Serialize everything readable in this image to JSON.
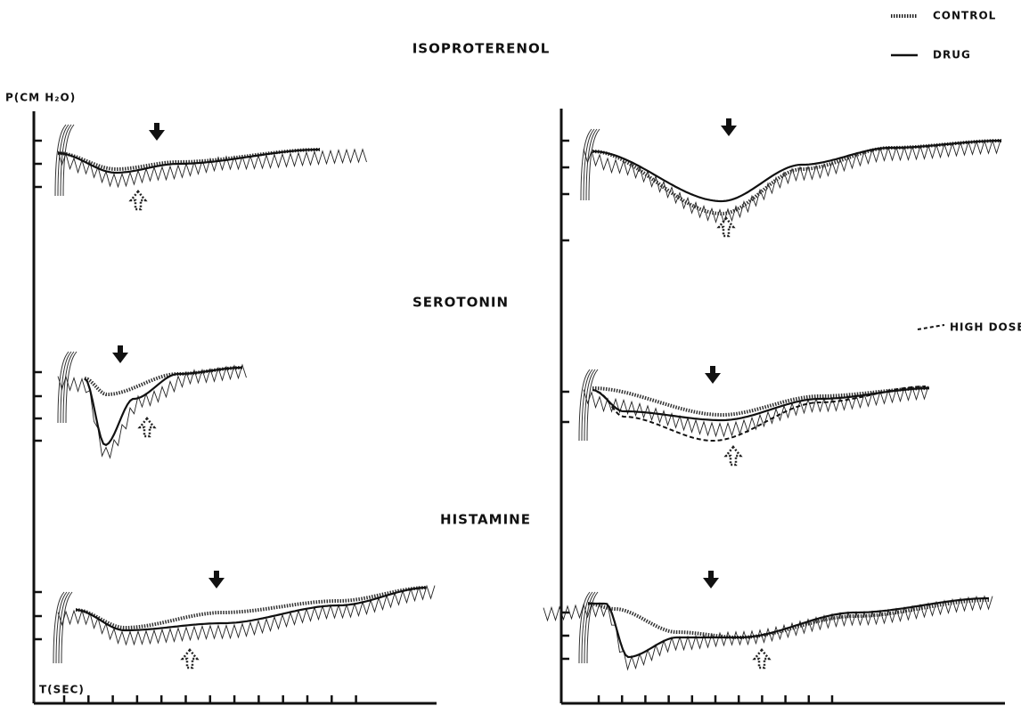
{
  "labels": {
    "title_1": "ISOPROTERENOL",
    "title_2": "SEROTONIN",
    "title_3": "HISTAMINE"
  },
  "legend": {
    "control": "CONTROL",
    "drug": "DRUG",
    "high_dose": "HIGH DOSE"
  },
  "axes": {
    "y_label": "P(CM H₂O)",
    "x_label": "T(SEC)"
  }
}
